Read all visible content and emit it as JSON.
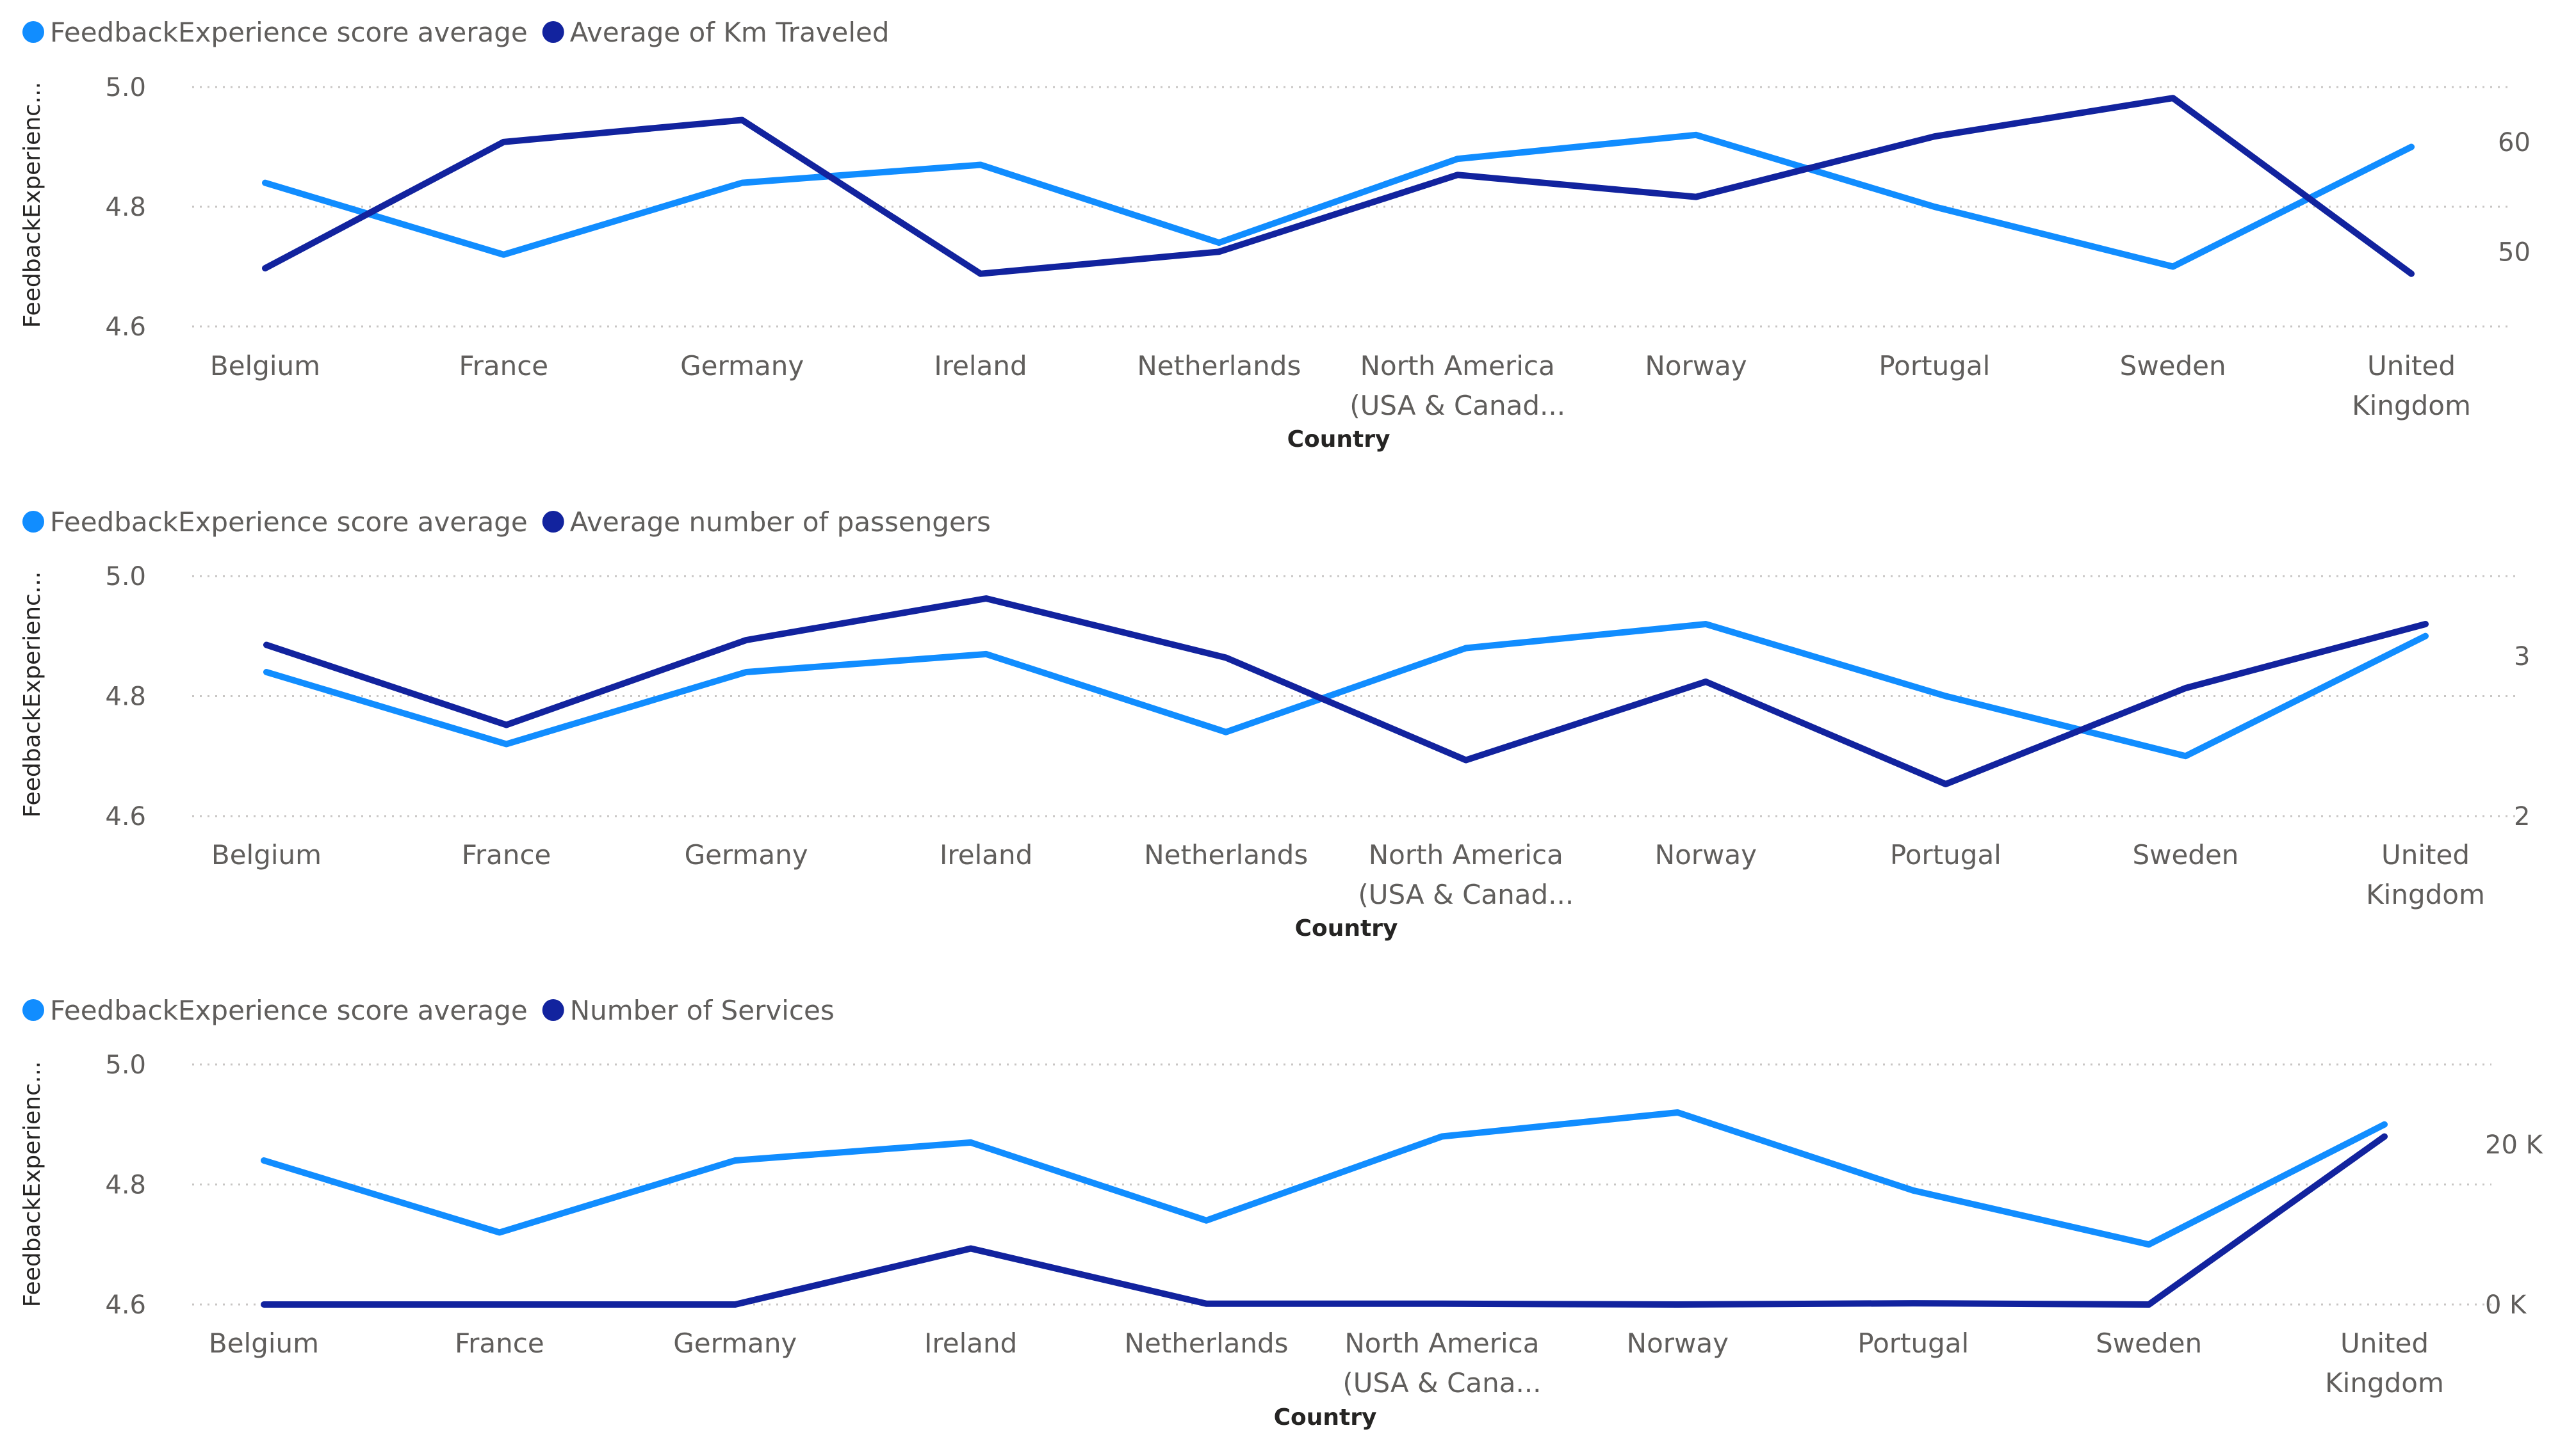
{
  "chart_data": [
    {
      "type": "line",
      "legend_position": "top-left",
      "categories": [
        "Belgium",
        "France",
        "Germany",
        "Ireland",
        "Netherlands",
        "North America (USA & Canad...",
        "Norway",
        "Portugal",
        "Sweden",
        "United Kingdom"
      ],
      "category_lines": [
        [
          "Belgium"
        ],
        [
          "France"
        ],
        [
          "Germany"
        ],
        [
          "Ireland"
        ],
        [
          "Netherlands"
        ],
        [
          "North America",
          "(USA & Canad..."
        ],
        [
          "Norway"
        ],
        [
          "Portugal"
        ],
        [
          "Sweden"
        ],
        [
          "United",
          "Kingdom"
        ]
      ],
      "xlabel": "Country",
      "ylabel": "FeedbackExperienc...",
      "left_axis": {
        "min": 4.6,
        "max": 5.0,
        "ticks": [
          "5.0",
          "4.8",
          "4.6"
        ],
        "tick_values": [
          5.0,
          4.8,
          4.6
        ]
      },
      "right_axis": {
        "min": 43.2,
        "max": 65,
        "ticks": [
          "60",
          "50"
        ],
        "tick_values": [
          60,
          50
        ]
      },
      "series": [
        {
          "name": "FeedbackExperience score average",
          "axis": "left",
          "color": "#118DFF",
          "values": [
            4.84,
            4.72,
            4.84,
            4.87,
            4.74,
            4.88,
            4.92,
            4.8,
            4.7,
            4.9
          ]
        },
        {
          "name": "Average of Km Traveled",
          "axis": "right",
          "color": "#12239E",
          "values": [
            48.5,
            60.0,
            62.0,
            48.0,
            50.0,
            57.0,
            55.0,
            60.5,
            64.0,
            48.0
          ]
        }
      ]
    },
    {
      "type": "line",
      "legend_position": "top-left",
      "categories": [
        "Belgium",
        "France",
        "Germany",
        "Ireland",
        "Netherlands",
        "North America (USA & Canad...",
        "Norway",
        "Portugal",
        "Sweden",
        "United Kingdom"
      ],
      "category_lines": [
        [
          "Belgium"
        ],
        [
          "France"
        ],
        [
          "Germany"
        ],
        [
          "Ireland"
        ],
        [
          "Netherlands"
        ],
        [
          "North America",
          "(USA & Canad..."
        ],
        [
          "Norway"
        ],
        [
          "Portugal"
        ],
        [
          "Sweden"
        ],
        [
          "United",
          "Kingdom"
        ]
      ],
      "xlabel": "Country",
      "ylabel": "FeedbackExperienc...",
      "left_axis": {
        "min": 4.6,
        "max": 5.0,
        "ticks": [
          "5.0",
          "4.8",
          "4.6"
        ],
        "tick_values": [
          5.0,
          4.8,
          4.6
        ]
      },
      "right_axis": {
        "min": 2.0,
        "max": 3.5,
        "ticks": [
          "3",
          "2"
        ],
        "tick_values": [
          3,
          2
        ]
      },
      "series": [
        {
          "name": "FeedbackExperience score average",
          "axis": "left",
          "color": "#118DFF",
          "values": [
            4.84,
            4.72,
            4.84,
            4.87,
            4.74,
            4.88,
            4.92,
            4.8,
            4.7,
            4.9
          ]
        },
        {
          "name": "Average number of passengers",
          "axis": "right",
          "color": "#12239E",
          "values": [
            3.07,
            2.57,
            3.1,
            3.36,
            2.99,
            2.35,
            2.84,
            2.2,
            2.8,
            3.2
          ]
        }
      ]
    },
    {
      "type": "line",
      "legend_position": "top-left",
      "categories": [
        "Belgium",
        "France",
        "Germany",
        "Ireland",
        "Netherlands",
        "North America (USA & Cana...",
        "Norway",
        "Portugal",
        "Sweden",
        "United Kingdom"
      ],
      "category_lines": [
        [
          "Belgium"
        ],
        [
          "France"
        ],
        [
          "Germany"
        ],
        [
          "Ireland"
        ],
        [
          "Netherlands"
        ],
        [
          "North America",
          "(USA & Cana..."
        ],
        [
          "Norway"
        ],
        [
          "Portugal"
        ],
        [
          "Sweden"
        ],
        [
          "United",
          "Kingdom"
        ]
      ],
      "xlabel": "Country",
      "ylabel": "FeedbackExperienc...",
      "left_axis": {
        "min": 4.6,
        "max": 5.0,
        "ticks": [
          "5.0",
          "4.8",
          "4.6"
        ],
        "tick_values": [
          5.0,
          4.8,
          4.6
        ]
      },
      "right_axis": {
        "min": 0,
        "max": 30000,
        "ticks": [
          "20 K",
          "0 K"
        ],
        "tick_values": [
          20000,
          0
        ]
      },
      "series": [
        {
          "name": "FeedbackExperience score average",
          "axis": "left",
          "color": "#118DFF",
          "values": [
            4.84,
            4.72,
            4.84,
            4.87,
            4.74,
            4.88,
            4.92,
            4.79,
            4.7,
            4.9
          ]
        },
        {
          "name": "Number of Services",
          "axis": "right",
          "color": "#12239E",
          "values": [
            0,
            0,
            0,
            7000,
            100,
            100,
            0,
            150,
            0,
            21000
          ]
        }
      ]
    }
  ]
}
